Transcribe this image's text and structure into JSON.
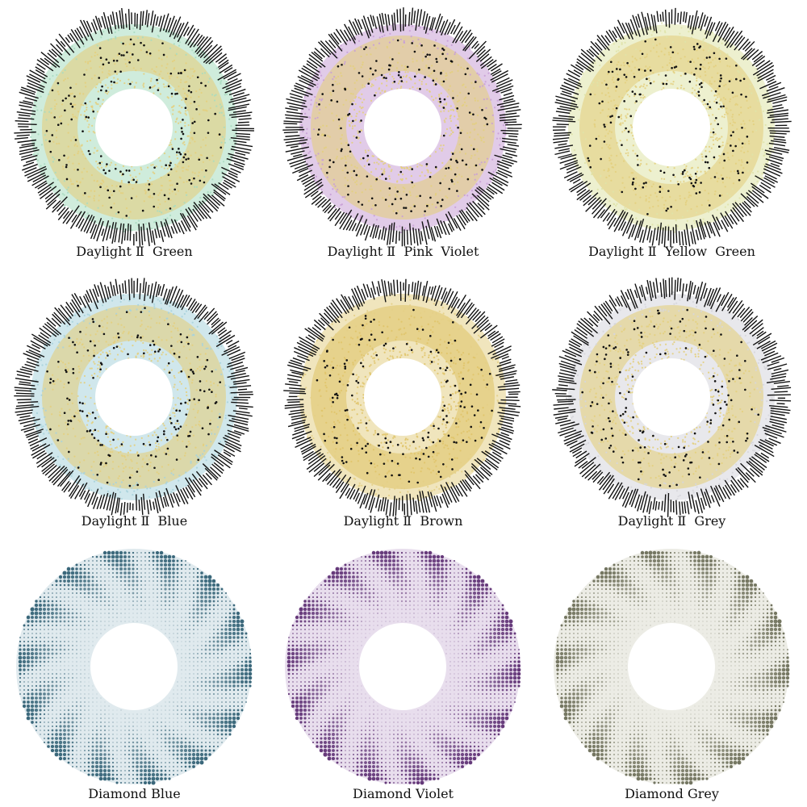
{
  "lenses": [
    {
      "label": "Daylight Ⅱ  Green",
      "style": "daylight",
      "tint": "#a8dcc0",
      "accent": "#e3cf7e"
    },
    {
      "label": "Daylight Ⅱ  Pink  Violet",
      "style": "daylight",
      "tint": "#c9a0d6",
      "accent": "#e3cf7e"
    },
    {
      "label": "Daylight Ⅱ  Yellow  Green",
      "style": "daylight",
      "tint": "#dfe3a8",
      "accent": "#e3cf7e"
    },
    {
      "label": "Daylight Ⅱ  Blue",
      "style": "daylight",
      "tint": "#a9d3dc",
      "accent": "#e3cf7e"
    },
    {
      "label": "Daylight Ⅱ  Brown",
      "style": "daylight",
      "tint": "#e4cf86",
      "accent": "#e0c46a"
    },
    {
      "label": "Daylight Ⅱ  Grey",
      "style": "daylight",
      "tint": "#d6d6dc",
      "accent": "#e3cf7e"
    },
    {
      "label": "Diamond Blue",
      "style": "diamond",
      "tint": "#2f5f73",
      "accent": "#c6d8e0"
    },
    {
      "label": "Diamond Violet",
      "style": "diamond",
      "tint": "#5d2f73",
      "accent": "#d6c3de"
    },
    {
      "label": "Diamond Grey",
      "style": "diamond",
      "tint": "#6c6e58",
      "accent": "#dcdcd0"
    }
  ]
}
